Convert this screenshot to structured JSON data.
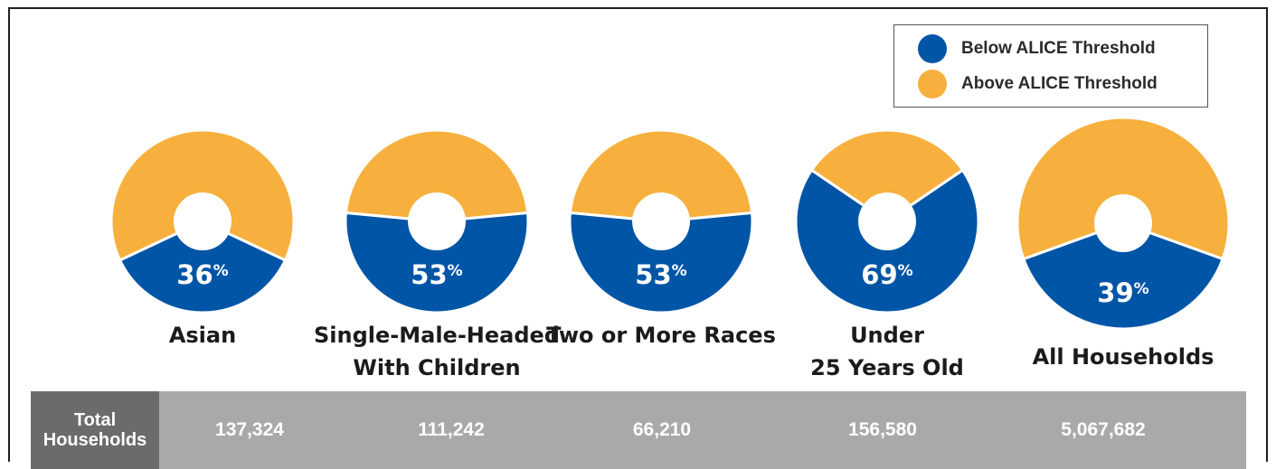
{
  "colors": {
    "below": "#0055A6",
    "above": "#F7B03D"
  },
  "legend": [
    {
      "label": "Below ALICE Threshold",
      "color": "#0055A6"
    },
    {
      "label": "Above ALICE Threshold",
      "color": "#F7B03D"
    }
  ],
  "chart_data": {
    "type": "pie",
    "series": [
      {
        "name": "Below ALICE Threshold",
        "color": "#0055A6"
      },
      {
        "name": "Above ALICE Threshold",
        "color": "#F7B03D"
      }
    ],
    "groups": [
      {
        "label_lines": [
          "Asian"
        ],
        "below_pct": 36,
        "total_households": "137,324"
      },
      {
        "label_lines": [
          "Single-Male-Headed",
          "With Children"
        ],
        "below_pct": 53,
        "total_households": "111,242"
      },
      {
        "label_lines": [
          "Two or More Races"
        ],
        "below_pct": 53,
        "total_households": "66,210"
      },
      {
        "label_lines": [
          "Under",
          "25 Years Old"
        ],
        "below_pct": 69,
        "total_households": "156,580"
      },
      {
        "label_lines": [
          "All Households"
        ],
        "below_pct": 39,
        "total_households": "5,067,682"
      }
    ]
  },
  "table": {
    "row_header_lines": [
      "Total",
      "Households"
    ]
  }
}
